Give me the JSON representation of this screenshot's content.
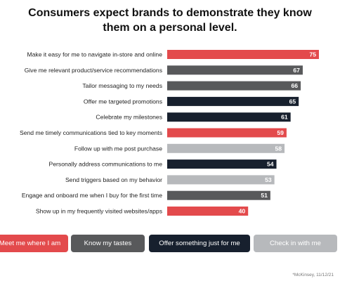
{
  "title_lines": [
    "Consumers expect brands to demonstrate they know",
    "them on a personal level."
  ],
  "colors": {
    "meet": "#e34a4c",
    "know": "#58595b",
    "offer": "#17202e",
    "check": "#b7b9bc"
  },
  "chart_data": {
    "type": "bar",
    "orientation": "horizontal",
    "title": "Consumers expect brands to demonstrate they know them on a personal level.",
    "xlim": [
      0,
      100
    ],
    "grid": false,
    "legend_placement": "bottom",
    "categories": [
      "Make it easy for me to navigate in-store and online",
      "Give me relevant product/service recommendations",
      "Tailor messaging to my needs",
      "Offer me targeted promotions",
      "Celebrate my milestones",
      "Send me timely communications tied to key moments",
      "Follow up with me post purchase",
      "Personally address communications to me",
      "Send triggers based on my behavior",
      "Engage and onboard me when I buy for the first time",
      "Show up in my frequently visited websites/apps"
    ],
    "values": [
      75,
      67,
      66,
      65,
      61,
      59,
      58,
      54,
      53,
      51,
      40
    ],
    "groups": [
      "meet",
      "know",
      "know",
      "offer",
      "offer",
      "meet",
      "check",
      "offer",
      "check",
      "know",
      "meet"
    ],
    "legend": [
      {
        "key": "meet",
        "label": "Meet me where I am"
      },
      {
        "key": "know",
        "label": "Know my tastes"
      },
      {
        "key": "offer",
        "label": "Offer something just for me"
      },
      {
        "key": "check",
        "label": "Check in with me"
      }
    ]
  },
  "footnote": "*McKinsey, 11/12/21"
}
